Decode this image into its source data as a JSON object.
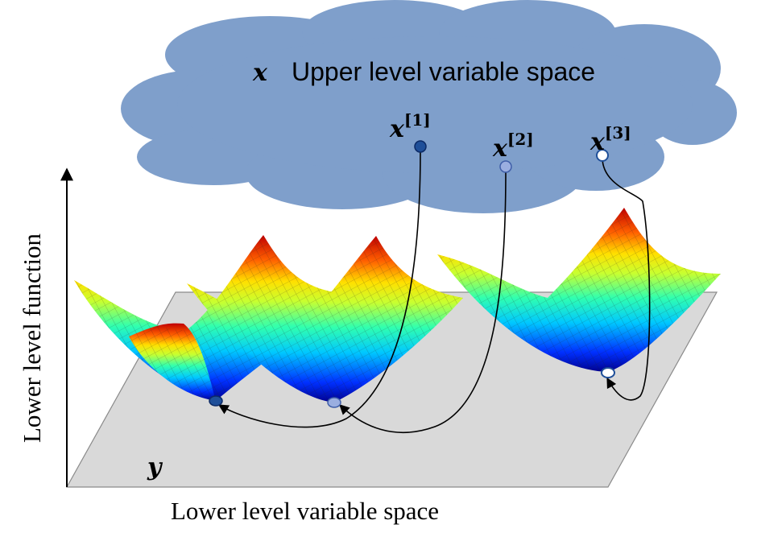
{
  "cloud": {
    "symbol": "x",
    "title": "Upper level variable space",
    "color": "#7f9fcb"
  },
  "points": [
    {
      "base": "x",
      "sup": "[1]",
      "fill": "#1f4f99"
    },
    {
      "base": "x",
      "sup": "[2]",
      "fill": "#9aaee0"
    },
    {
      "base": "x",
      "sup": "[3]",
      "fill": "#ffffff"
    }
  ],
  "axes": {
    "y_label": "Lower level function",
    "x_label": "Lower level variable space",
    "plane_symbol": "y"
  },
  "colors": {
    "plane": "#d9d9d9",
    "edge_dark": "#1f4f99",
    "edge_light": "#9aaee0"
  }
}
